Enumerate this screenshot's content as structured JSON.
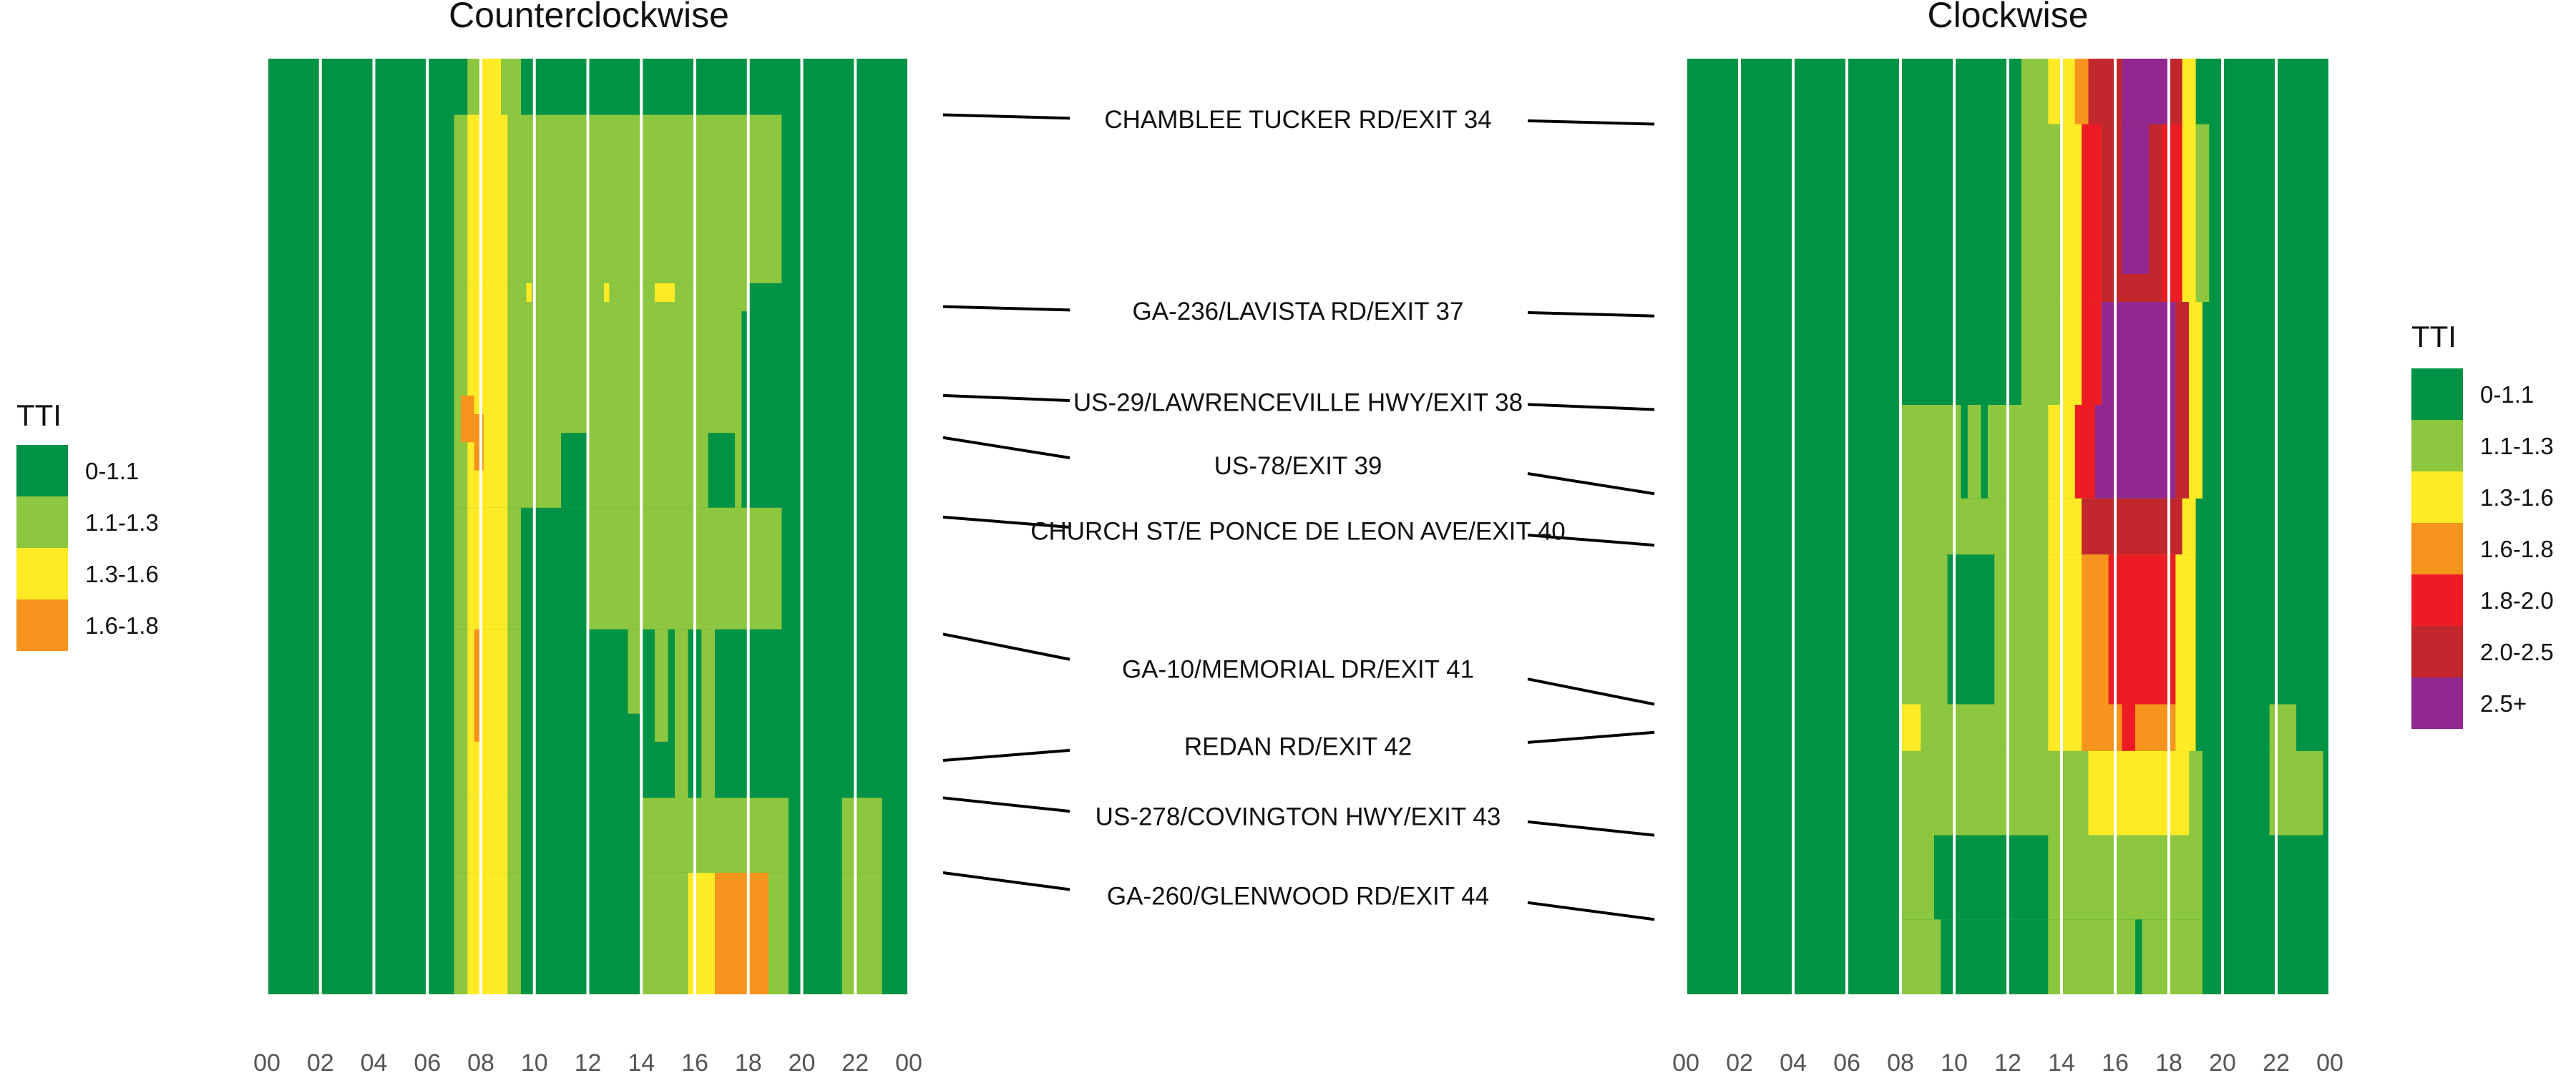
{
  "chart_data": [
    {
      "type": "heatmap",
      "title": "Counterclockwise",
      "x_tick_labels": [
        "00",
        "02",
        "04",
        "06",
        "08",
        "10",
        "12",
        "14",
        "16",
        "18",
        "20",
        "22",
        "00"
      ],
      "x_range": [
        0,
        24
      ],
      "y_range": [
        0,
        100
      ],
      "default_bin": "0-1.1",
      "legend": {
        "title": "TTI",
        "placement": "left",
        "items": [
          {
            "label": "0-1.1",
            "color": "#009345"
          },
          {
            "label": "1.1-1.3",
            "color": "#8DC63F"
          },
          {
            "label": "1.3-1.6",
            "color": "#FFEB25"
          },
          {
            "label": "1.6-1.8",
            "color": "#F7941D"
          }
        ]
      },
      "cells": [
        {
          "x": [
            7.5,
            9.5
          ],
          "y": [
            0,
            6
          ],
          "bin": "1.1-1.3"
        },
        {
          "x": [
            8.0,
            8.75
          ],
          "y": [
            0,
            6
          ],
          "bin": "1.3-1.6"
        },
        {
          "x": [
            7.0,
            19.25
          ],
          "y": [
            6,
            24
          ],
          "bin": "1.1-1.3"
        },
        {
          "x": [
            7.5,
            9.0
          ],
          "y": [
            6,
            24
          ],
          "bin": "1.3-1.6"
        },
        {
          "x": [
            7.0,
            18.0
          ],
          "y": [
            24,
            48
          ],
          "bin": "1.1-1.3"
        },
        {
          "x": [
            7.5,
            9.0
          ],
          "y": [
            24,
            48
          ],
          "bin": "1.3-1.6"
        },
        {
          "x": [
            7.25,
            7.75
          ],
          "y": [
            36,
            41
          ],
          "bin": "1.6-1.8"
        },
        {
          "x": [
            7.75,
            8.1
          ],
          "y": [
            38,
            44
          ],
          "bin": "1.6-1.8"
        },
        {
          "x": [
            9.7,
            9.9
          ],
          "y": [
            24,
            26
          ],
          "bin": "1.3-1.6"
        },
        {
          "x": [
            12.6,
            12.8
          ],
          "y": [
            24,
            26
          ],
          "bin": "1.3-1.6"
        },
        {
          "x": [
            14.5,
            15.25
          ],
          "y": [
            24,
            26
          ],
          "bin": "1.3-1.6"
        },
        {
          "x": [
            11.0,
            12.0
          ],
          "y": [
            40,
            48
          ],
          "bin": "0-1.1"
        },
        {
          "x": [
            16.5,
            17.5
          ],
          "y": [
            40,
            48
          ],
          "bin": "0-1.1"
        },
        {
          "x": [
            17.75,
            18.0
          ],
          "y": [
            27,
            48
          ],
          "bin": "0-1.1"
        },
        {
          "x": [
            7.0,
            9.5
          ],
          "y": [
            48,
            61
          ],
          "bin": "1.1-1.3"
        },
        {
          "x": [
            7.5,
            9.0
          ],
          "y": [
            48,
            61
          ],
          "bin": "1.3-1.6"
        },
        {
          "x": [
            12.0,
            19.25
          ],
          "y": [
            48,
            61
          ],
          "bin": "1.1-1.3"
        },
        {
          "x": [
            7.0,
            9.5
          ],
          "y": [
            61,
            79
          ],
          "bin": "1.1-1.3"
        },
        {
          "x": [
            7.5,
            9.0
          ],
          "y": [
            61,
            79
          ],
          "bin": "1.3-1.6"
        },
        {
          "x": [
            7.75,
            8.0
          ],
          "y": [
            61,
            73
          ],
          "bin": "1.6-1.8"
        },
        {
          "x": [
            13.5,
            14.0
          ],
          "y": [
            61,
            70
          ],
          "bin": "1.1-1.3"
        },
        {
          "x": [
            14.5,
            15.0
          ],
          "y": [
            61,
            73
          ],
          "bin": "1.1-1.3"
        },
        {
          "x": [
            15.25,
            15.75
          ],
          "y": [
            61,
            79
          ],
          "bin": "1.1-1.3"
        },
        {
          "x": [
            16.25,
            16.75
          ],
          "y": [
            61,
            79
          ],
          "bin": "1.1-1.3"
        },
        {
          "x": [
            7.0,
            9.5
          ],
          "y": [
            79,
            87
          ],
          "bin": "1.1-1.3"
        },
        {
          "x": [
            7.5,
            9.0
          ],
          "y": [
            79,
            87
          ],
          "bin": "1.3-1.6"
        },
        {
          "x": [
            14.0,
            19.5
          ],
          "y": [
            79,
            87
          ],
          "bin": "1.1-1.3"
        },
        {
          "x": [
            21.5,
            23.0
          ],
          "y": [
            79,
            87
          ],
          "bin": "1.1-1.3"
        },
        {
          "x": [
            7.0,
            9.5
          ],
          "y": [
            87,
            100
          ],
          "bin": "1.1-1.3"
        },
        {
          "x": [
            7.5,
            9.0
          ],
          "y": [
            87,
            100
          ],
          "bin": "1.3-1.6"
        },
        {
          "x": [
            14.0,
            19.5
          ],
          "y": [
            87,
            100
          ],
          "bin": "1.1-1.3"
        },
        {
          "x": [
            15.75,
            18.75
          ],
          "y": [
            87,
            100
          ],
          "bin": "1.3-1.6"
        },
        {
          "x": [
            16.75,
            18.75
          ],
          "y": [
            87,
            100
          ],
          "bin": "1.6-1.8"
        },
        {
          "x": [
            21.5,
            23.0
          ],
          "y": [
            87,
            100
          ],
          "bin": "1.1-1.3"
        }
      ]
    },
    {
      "type": "heatmap",
      "title": "Clockwise",
      "x_tick_labels": [
        "00",
        "02",
        "04",
        "06",
        "08",
        "10",
        "12",
        "14",
        "16",
        "18",
        "20",
        "22",
        "00"
      ],
      "x_range": [
        0,
        24
      ],
      "y_range": [
        0,
        100
      ],
      "default_bin": "0-1.1",
      "legend": {
        "title": "TTI",
        "placement": "right",
        "items": [
          {
            "label": "0-1.1",
            "color": "#009345"
          },
          {
            "label": "1.1-1.3",
            "color": "#8DC63F"
          },
          {
            "label": "1.3-1.6",
            "color": "#FFEB25"
          },
          {
            "label": "1.6-1.8",
            "color": "#F7941D"
          },
          {
            "label": "1.8-2.0",
            "color": "#ED1C24"
          },
          {
            "label": "2.0-2.5",
            "color": "#C1272D"
          },
          {
            "label": "2.5+",
            "color": "#92278F"
          }
        ]
      },
      "cells": [
        {
          "x": [
            12.5,
            19.0
          ],
          "y": [
            0,
            7
          ],
          "bin": "1.1-1.3"
        },
        {
          "x": [
            13.5,
            14.5
          ],
          "y": [
            0,
            7
          ],
          "bin": "1.3-1.6"
        },
        {
          "x": [
            14.5,
            15.25
          ],
          "y": [
            0,
            7
          ],
          "bin": "1.6-1.8"
        },
        {
          "x": [
            15.0,
            16.25
          ],
          "y": [
            0,
            7
          ],
          "bin": "2.0-2.5"
        },
        {
          "x": [
            16.25,
            18.0
          ],
          "y": [
            0,
            7
          ],
          "bin": "2.5+"
        },
        {
          "x": [
            18.0,
            18.5
          ],
          "y": [
            0,
            7
          ],
          "bin": "2.0-2.5"
        },
        {
          "x": [
            18.5,
            19.0
          ],
          "y": [
            0,
            7
          ],
          "bin": "1.3-1.6"
        },
        {
          "x": [
            12.5,
            19.5
          ],
          "y": [
            7,
            26
          ],
          "bin": "1.1-1.3"
        },
        {
          "x": [
            14.0,
            14.75
          ],
          "y": [
            7,
            26
          ],
          "bin": "1.3-1.6"
        },
        {
          "x": [
            14.75,
            15.5
          ],
          "y": [
            7,
            26
          ],
          "bin": "1.8-2.0"
        },
        {
          "x": [
            15.5,
            17.75
          ],
          "y": [
            7,
            26
          ],
          "bin": "2.0-2.5"
        },
        {
          "x": [
            16.25,
            17.25
          ],
          "y": [
            7,
            23
          ],
          "bin": "2.5+"
        },
        {
          "x": [
            17.75,
            18.5
          ],
          "y": [
            7,
            26
          ],
          "bin": "1.8-2.0"
        },
        {
          "x": [
            18.5,
            19.0
          ],
          "y": [
            7,
            26
          ],
          "bin": "1.3-1.6"
        },
        {
          "x": [
            12.5,
            19.25
          ],
          "y": [
            26,
            37
          ],
          "bin": "1.1-1.3"
        },
        {
          "x": [
            14.0,
            14.75
          ],
          "y": [
            26,
            37
          ],
          "bin": "1.3-1.6"
        },
        {
          "x": [
            14.75,
            15.5
          ],
          "y": [
            26,
            37
          ],
          "bin": "1.8-2.0"
        },
        {
          "x": [
            15.5,
            18.25
          ],
          "y": [
            26,
            37
          ],
          "bin": "2.5+"
        },
        {
          "x": [
            18.25,
            18.75
          ],
          "y": [
            26,
            37
          ],
          "bin": "2.0-2.5"
        },
        {
          "x": [
            18.75,
            19.25
          ],
          "y": [
            26,
            37
          ],
          "bin": "1.3-1.6"
        },
        {
          "x": [
            8.0,
            19.25
          ],
          "y": [
            37,
            47
          ],
          "bin": "1.1-1.3"
        },
        {
          "x": [
            13.5,
            14.5
          ],
          "y": [
            37,
            47
          ],
          "bin": "1.3-1.6"
        },
        {
          "x": [
            14.5,
            15.25
          ],
          "y": [
            37,
            47
          ],
          "bin": "1.8-2.0"
        },
        {
          "x": [
            15.25,
            18.25
          ],
          "y": [
            37,
            47
          ],
          "bin": "2.5+"
        },
        {
          "x": [
            18.25,
            18.75
          ],
          "y": [
            37,
            47
          ],
          "bin": "2.0-2.5"
        },
        {
          "x": [
            18.75,
            19.25
          ],
          "y": [
            37,
            47
          ],
          "bin": "1.3-1.6"
        },
        {
          "x": [
            10.25,
            10.5
          ],
          "y": [
            37,
            47
          ],
          "bin": "0-1.1"
        },
        {
          "x": [
            11.0,
            11.25
          ],
          "y": [
            37,
            47
          ],
          "bin": "0-1.1"
        },
        {
          "x": [
            8.0,
            19.0
          ],
          "y": [
            47,
            53
          ],
          "bin": "1.1-1.3"
        },
        {
          "x": [
            13.5,
            14.75
          ],
          "y": [
            47,
            53
          ],
          "bin": "1.3-1.6"
        },
        {
          "x": [
            14.75,
            18.5
          ],
          "y": [
            47,
            53
          ],
          "bin": "2.0-2.5"
        },
        {
          "x": [
            18.5,
            19.0
          ],
          "y": [
            47,
            53
          ],
          "bin": "1.3-1.6"
        },
        {
          "x": [
            8.0,
            19.0
          ],
          "y": [
            53,
            69
          ],
          "bin": "1.1-1.3"
        },
        {
          "x": [
            9.75,
            11.5
          ],
          "y": [
            53,
            69
          ],
          "bin": "0-1.1"
        },
        {
          "x": [
            13.5,
            14.75
          ],
          "y": [
            53,
            69
          ],
          "bin": "1.3-1.6"
        },
        {
          "x": [
            14.75,
            15.75
          ],
          "y": [
            53,
            69
          ],
          "bin": "1.6-1.8"
        },
        {
          "x": [
            15.75,
            18.25
          ],
          "y": [
            53,
            69
          ],
          "bin": "1.8-2.0"
        },
        {
          "x": [
            18.25,
            19.0
          ],
          "y": [
            53,
            69
          ],
          "bin": "1.3-1.6"
        },
        {
          "x": [
            8.0,
            19.0
          ],
          "y": [
            69,
            74
          ],
          "bin": "1.1-1.3"
        },
        {
          "x": [
            8.0,
            8.75
          ],
          "y": [
            69,
            74
          ],
          "bin": "1.3-1.6"
        },
        {
          "x": [
            13.5,
            14.75
          ],
          "y": [
            69,
            74
          ],
          "bin": "1.3-1.6"
        },
        {
          "x": [
            14.75,
            16.25
          ],
          "y": [
            69,
            74
          ],
          "bin": "1.6-1.8"
        },
        {
          "x": [
            16.25,
            16.75
          ],
          "y": [
            69,
            74
          ],
          "bin": "1.8-2.0"
        },
        {
          "x": [
            16.75,
            18.25
          ],
          "y": [
            69,
            74
          ],
          "bin": "1.6-1.8"
        },
        {
          "x": [
            18.25,
            19.0
          ],
          "y": [
            69,
            74
          ],
          "bin": "1.3-1.6"
        },
        {
          "x": [
            21.75,
            22.75
          ],
          "y": [
            69,
            74
          ],
          "bin": "1.1-1.3"
        },
        {
          "x": [
            8.0,
            19.25
          ],
          "y": [
            74,
            83
          ],
          "bin": "1.1-1.3"
        },
        {
          "x": [
            15.0,
            18.75
          ],
          "y": [
            74,
            83
          ],
          "bin": "1.3-1.6"
        },
        {
          "x": [
            21.75,
            23.75
          ],
          "y": [
            74,
            83
          ],
          "bin": "1.1-1.3"
        },
        {
          "x": [
            8.0,
            19.25
          ],
          "y": [
            83,
            92
          ],
          "bin": "1.1-1.3"
        },
        {
          "x": [
            9.25,
            13.5
          ],
          "y": [
            83,
            92
          ],
          "bin": "0-1.1"
        },
        {
          "x": [
            8.0,
            9.5
          ],
          "y": [
            92,
            100
          ],
          "bin": "1.1-1.3"
        },
        {
          "x": [
            13.5,
            19.25
          ],
          "y": [
            92,
            100
          ],
          "bin": "1.1-1.3"
        },
        {
          "x": [
            16.75,
            17.0
          ],
          "y": [
            92,
            100
          ],
          "bin": "0-1.1"
        }
      ]
    }
  ],
  "exit_labels": [
    {
      "text": "CHAMBLEE TUCKER RD/EXIT 34",
      "ccw_y": 6,
      "cw_y": 7
    },
    {
      "text": "GA-236/LAVISTA RD/EXIT 37",
      "ccw_y": 26.5,
      "cw_y": 27.5
    },
    {
      "text": "US-29/LAWRENCEVILLE HWY/EXIT 38",
      "ccw_y": 36,
      "cw_y": 37.5
    },
    {
      "text": "US-78/EXIT 39",
      "ccw_y": 40.5,
      "cw_y": 46.5
    },
    {
      "text": "CHURCH ST/E PONCE DE LEON AVE/EXIT 40",
      "ccw_y": 49,
      "cw_y": 52
    },
    {
      "text": "GA-10/MEMORIAL DR/EXIT 41",
      "ccw_y": 61.5,
      "cw_y": 69
    },
    {
      "text": "REDAN RD/EXIT 42",
      "ccw_y": 75,
      "cw_y": 72
    },
    {
      "text": "US-278/COVINGTON HWY/EXIT 43",
      "ccw_y": 79,
      "cw_y": 83
    },
    {
      "text": "GA-260/GLENWOOD RD/EXIT 44",
      "ccw_y": 87,
      "cw_y": 92
    }
  ]
}
